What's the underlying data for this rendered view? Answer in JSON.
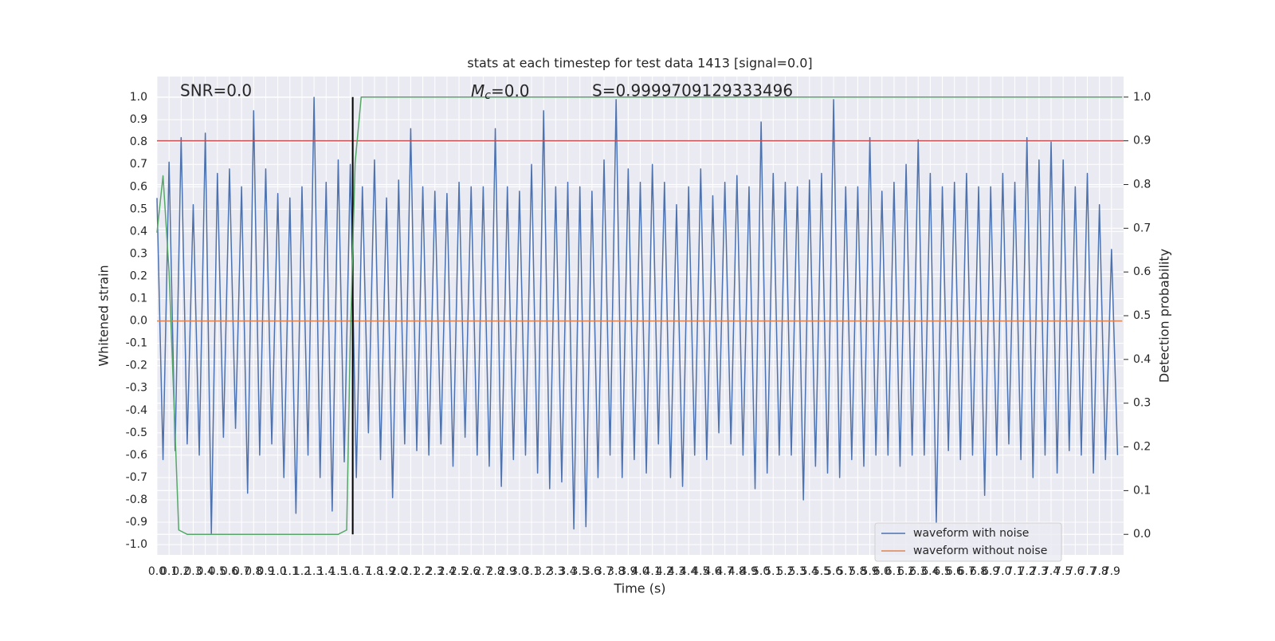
{
  "chart_data": {
    "type": "line",
    "title": "stats at each timestep for test data 1413 [signal=0.0]",
    "x_label": "Time (s)",
    "y_label": "Whitened strain",
    "y2_label": "Detection probability",
    "xlim": [
      0,
      8.0
    ],
    "ylim": [
      -1.046,
      1.093
    ],
    "y2lim": [
      -0.047,
      1.047
    ],
    "grid": true,
    "legend_position": "lower right",
    "xticks": [
      {
        "value": 0,
        "label": "0.0"
      },
      0.1,
      0.2,
      0.3,
      0.4,
      0.5,
      0.6,
      0.7,
      0.8,
      0.9,
      {
        "value": 1,
        "label": "1.0"
      },
      1.1,
      1.2,
      1.3,
      1.4,
      1.5,
      1.6,
      1.7,
      1.8,
      1.9,
      {
        "value": 2,
        "label": "2.0"
      },
      2.1,
      2.2,
      2.3,
      2.4,
      2.5,
      2.6,
      2.7,
      2.8,
      2.9,
      {
        "value": 3,
        "label": "3.0"
      },
      3.1,
      3.2,
      3.3,
      3.4,
      3.5,
      3.6,
      3.7,
      3.8,
      3.9,
      {
        "value": 4,
        "label": "4.0"
      },
      4.1,
      4.2,
      4.3,
      4.4,
      4.5,
      4.6,
      4.7,
      4.8,
      4.9,
      {
        "value": 5,
        "label": "5.0"
      },
      5.1,
      5.2,
      5.3,
      5.4,
      5.5,
      5.6,
      5.7,
      5.8,
      5.9,
      {
        "value": 6,
        "label": "6.0"
      },
      6.1,
      6.2,
      6.3,
      6.4,
      6.5,
      6.6,
      6.7,
      6.8,
      6.9,
      {
        "value": 7,
        "label": "7.0"
      },
      7.1,
      7.2,
      7.3,
      7.4,
      7.5,
      7.6,
      7.7,
      7.8,
      7.9
    ],
    "yticks": [
      {
        "value": -1,
        "label": "-1.0"
      },
      -0.9,
      -0.8,
      -0.7,
      -0.6,
      -0.5,
      -0.4,
      -0.3,
      -0.2,
      -0.1,
      {
        "value": 0,
        "label": "0.0"
      },
      0.1,
      0.2,
      0.3,
      0.4,
      0.5,
      0.6,
      0.7,
      0.8,
      0.9,
      {
        "value": 1,
        "label": "1.0"
      }
    ],
    "y2ticks": [
      {
        "value": 0,
        "label": "0.0"
      },
      0.1,
      0.2,
      0.3,
      0.4,
      0.5,
      0.6,
      0.7,
      0.8,
      0.9,
      {
        "value": 1,
        "label": "1.0"
      }
    ],
    "series": [
      {
        "name": "waveform with noise",
        "color": "#4c72b0",
        "x": [
          0,
          0.05,
          0.1,
          0.15,
          0.2,
          0.25,
          0.3,
          0.35,
          0.4,
          0.45,
          0.5,
          0.55,
          0.6,
          0.65,
          0.7,
          0.75,
          0.8,
          0.85,
          0.9,
          0.95,
          1,
          1.05,
          1.1,
          1.15,
          1.2,
          1.25,
          1.3,
          1.35,
          1.4,
          1.45,
          1.5,
          1.55,
          1.6,
          1.65,
          1.7,
          1.75,
          1.8,
          1.85,
          1.9,
          1.95,
          2,
          2.05,
          2.1,
          2.15,
          2.2,
          2.25,
          2.3,
          2.35,
          2.4,
          2.45,
          2.5,
          2.55,
          2.6,
          2.65,
          2.7,
          2.75,
          2.8,
          2.85,
          2.9,
          2.95,
          3,
          3.05,
          3.1,
          3.15,
          3.2,
          3.25,
          3.3,
          3.35,
          3.4,
          3.45,
          3.5,
          3.55,
          3.6,
          3.65,
          3.7,
          3.75,
          3.8,
          3.85,
          3.9,
          3.95,
          4,
          4.05,
          4.1,
          4.15,
          4.2,
          4.25,
          4.3,
          4.35,
          4.4,
          4.45,
          4.5,
          4.55,
          4.6,
          4.65,
          4.7,
          4.75,
          4.8,
          4.85,
          4.9,
          4.95,
          5,
          5.05,
          5.1,
          5.15,
          5.2,
          5.25,
          5.3,
          5.35,
          5.4,
          5.45,
          5.5,
          5.55,
          5.6,
          5.65,
          5.7,
          5.75,
          5.8,
          5.85,
          5.9,
          5.95,
          6,
          6.05,
          6.1,
          6.15,
          6.2,
          6.25,
          6.3,
          6.35,
          6.4,
          6.45,
          6.5,
          6.55,
          6.6,
          6.65,
          6.7,
          6.75,
          6.8,
          6.85,
          6.9,
          6.95,
          7,
          7.05,
          7.1,
          7.15,
          7.2,
          7.25,
          7.3,
          7.35,
          7.4,
          7.45,
          7.5,
          7.55,
          7.6,
          7.65,
          7.7,
          7.75,
          7.8,
          7.85,
          7.9,
          7.95
        ],
        "values": [
          0.55,
          -0.62,
          0.71,
          -0.58,
          0.82,
          -0.55,
          0.52,
          -0.6,
          0.84,
          -0.95,
          0.66,
          -0.52,
          0.68,
          -0.48,
          0.6,
          -0.77,
          0.94,
          -0.6,
          0.68,
          -0.55,
          0.57,
          -0.7,
          0.55,
          -0.86,
          0.6,
          -0.6,
          1.0,
          -0.7,
          0.62,
          -0.85,
          0.72,
          -0.63,
          0.7,
          -0.7,
          0.6,
          -0.5,
          0.72,
          -0.62,
          0.55,
          -0.79,
          0.63,
          -0.55,
          0.86,
          -0.58,
          0.6,
          -0.6,
          0.58,
          -0.55,
          0.57,
          -0.65,
          0.62,
          -0.52,
          0.6,
          -0.6,
          0.6,
          -0.65,
          0.86,
          -0.74,
          0.6,
          -0.62,
          0.58,
          -0.6,
          0.7,
          -0.68,
          0.94,
          -0.75,
          0.6,
          -0.72,
          0.62,
          -0.93,
          0.6,
          -0.92,
          0.58,
          -0.7,
          0.72,
          -0.6,
          0.99,
          -0.7,
          0.68,
          -0.62,
          0.62,
          -0.68,
          0.7,
          -0.55,
          0.62,
          -0.7,
          0.52,
          -0.74,
          0.6,
          -0.6,
          0.68,
          -0.62,
          0.56,
          -0.5,
          0.62,
          -0.55,
          0.65,
          -0.6,
          0.6,
          -0.75,
          0.89,
          -0.68,
          0.66,
          -0.6,
          0.62,
          -0.6,
          0.6,
          -0.8,
          0.63,
          -0.65,
          0.66,
          -0.68,
          0.99,
          -0.7,
          0.6,
          -0.62,
          0.6,
          -0.65,
          0.82,
          -0.6,
          0.58,
          -0.6,
          0.62,
          -0.65,
          0.7,
          -0.6,
          0.81,
          -0.6,
          0.66,
          -0.9,
          0.6,
          -0.58,
          0.62,
          -0.62,
          0.66,
          -0.6,
          0.6,
          -0.78,
          0.6,
          -0.6,
          0.66,
          -0.55,
          0.62,
          -0.62,
          0.82,
          -0.7,
          0.72,
          -0.6,
          0.8,
          -0.68,
          0.72,
          -0.58,
          0.6,
          -0.6,
          0.66,
          -0.68,
          0.52,
          -0.62,
          0.32,
          -0.6
        ]
      },
      {
        "name": "waveform without noise",
        "color": "#dd8452",
        "x": [
          0,
          7.99
        ],
        "values": [
          0,
          0
        ]
      }
    ],
    "probability": {
      "color": "#55a868",
      "axis": "y2",
      "x": [
        0,
        0.05,
        0.1,
        0.18,
        0.25,
        1.5,
        1.57,
        1.6,
        1.64,
        1.69,
        7.99
      ],
      "values": [
        0.69,
        0.82,
        0.6,
        0.01,
        0,
        0,
        0.01,
        0.45,
        0.85,
        1.0,
        1.0
      ]
    },
    "hlines": [
      {
        "y": 0.9,
        "axis": "y2",
        "color": "#c44e52"
      }
    ],
    "vlines": [
      {
        "x": 1.62,
        "ymin": 0,
        "ymax": 1,
        "axis": "y2",
        "color": "#000000"
      }
    ],
    "annotations": {
      "snr": "SNR=0.0",
      "mc": {
        "symbol": "M",
        "sub": "c",
        "text": "=0.0"
      },
      "s": "S=0.9999709129333496"
    }
  }
}
